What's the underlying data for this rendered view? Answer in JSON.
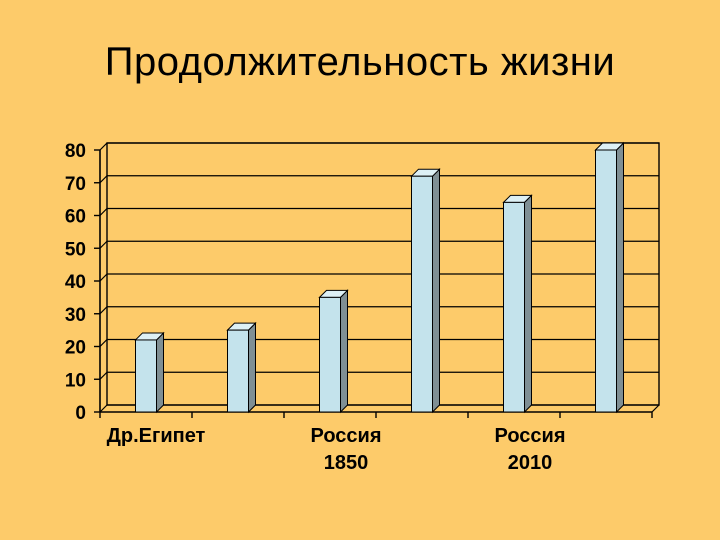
{
  "title": "Продолжительность жизни",
  "colors": {
    "background": "#FDCB6A",
    "bar_front": "#C4E3EC",
    "bar_top": "#DDF0F5",
    "bar_side": "#7F8F94",
    "grid": "#000000"
  },
  "chart_data": {
    "type": "bar",
    "title": "",
    "xlabel": "",
    "ylabel": "",
    "ylim": [
      0,
      80
    ],
    "yticks": [
      "0",
      "10",
      "20",
      "30",
      "40",
      "50",
      "60",
      "70",
      "80"
    ],
    "grid": true,
    "legend": "none",
    "bars": [
      22,
      25,
      35,
      72,
      64,
      80
    ],
    "category_labels": [
      {
        "lines": [
          "Др.Египет"
        ],
        "slot": 0
      },
      {
        "lines": [
          "Россия",
          "1850"
        ],
        "slot": 2
      },
      {
        "lines": [
          "Россия",
          "2010"
        ],
        "slot": 4
      }
    ]
  }
}
